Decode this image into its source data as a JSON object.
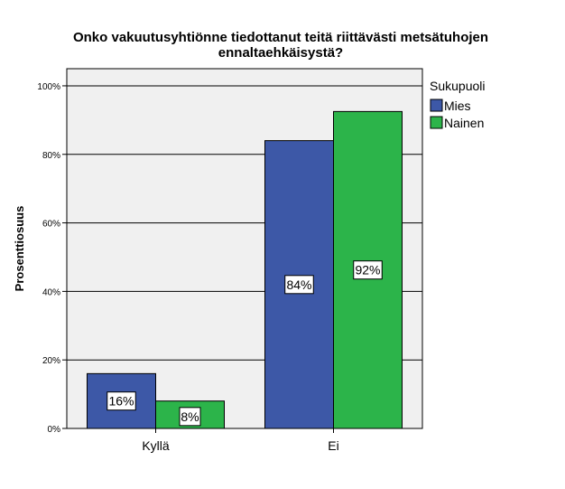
{
  "chart_data": {
    "type": "bar",
    "title_line1": "Onko vakuutusyhtiönne tiedottanut teitä riittävästi metsätuhojen",
    "title_line2": "ennaltaehkäisystä?",
    "ylabel": "Prosenttiosuus",
    "xlabel": "",
    "categories": [
      "Kyllä",
      "Ei"
    ],
    "legend_title": "Sukupuoli",
    "legend_position": "right",
    "ylim": [
      0,
      105
    ],
    "yticks": [
      0,
      20,
      40,
      60,
      80,
      100
    ],
    "ytick_labels": [
      "0%",
      "20%",
      "40%",
      "60%",
      "80%",
      "100%"
    ],
    "grid": true,
    "series": [
      {
        "name": "Mies",
        "color": "#3d58a7",
        "values": [
          16,
          84
        ],
        "labels": [
          "16%",
          "84%"
        ]
      },
      {
        "name": "Nainen",
        "color": "#2cb44a",
        "values": [
          8,
          92.5
        ],
        "labels": [
          "8%",
          "92%"
        ]
      }
    ],
    "plot_background": "#f0f0f0"
  }
}
